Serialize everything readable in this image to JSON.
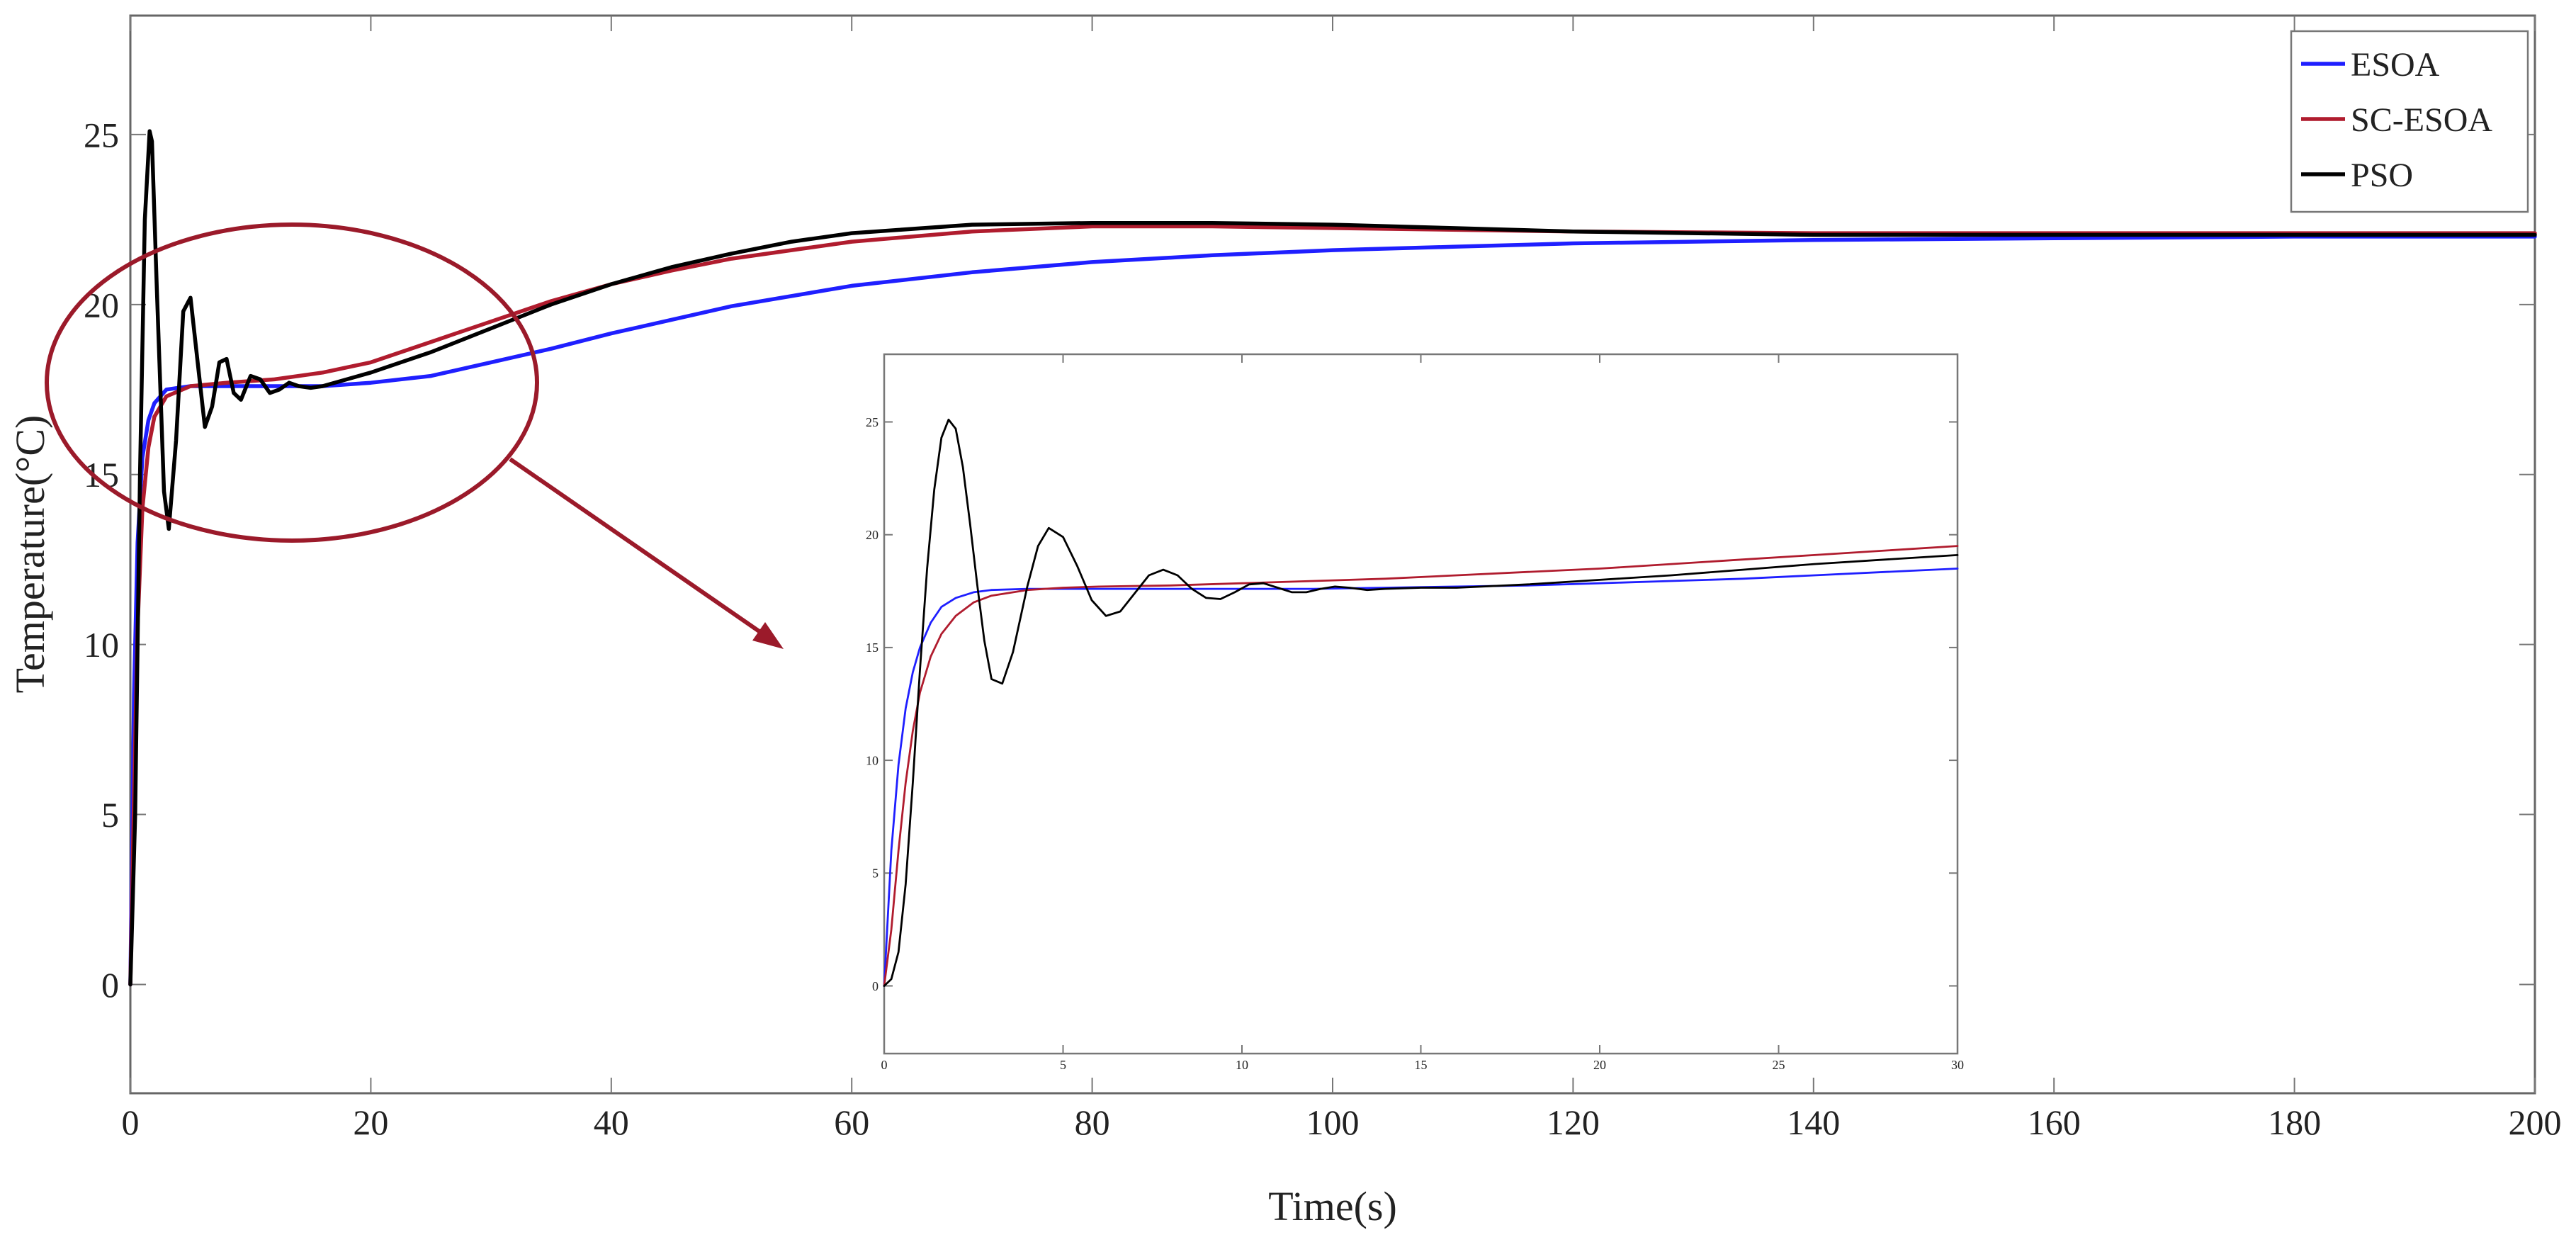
{
  "chart_data": [
    {
      "id": "main",
      "type": "line",
      "title": "",
      "xlabel": "Time(s)",
      "ylabel": "Temperature(°C)",
      "xlim": [
        0,
        200
      ],
      "ylim": [
        -3.2,
        28.5
      ],
      "xticks": [
        0,
        20,
        40,
        60,
        80,
        100,
        120,
        140,
        160,
        180,
        200
      ],
      "yticks": [
        0,
        5,
        10,
        15,
        20,
        25
      ],
      "grid": false,
      "legend_position": "top-right",
      "legend": [
        "ESOA",
        "SC-ESOA",
        "PSO"
      ],
      "series": [
        {
          "name": "ESOA",
          "color": "#1f1fff",
          "x": [
            0,
            0.3,
            0.6,
            1.0,
            1.5,
            2.0,
            3.0,
            5.0,
            8.0,
            12.0,
            16.0,
            20.0,
            25.0,
            30.0,
            35.0,
            40.0,
            50.0,
            60.0,
            70.0,
            80.0,
            90.0,
            100.0,
            110.0,
            120.0,
            140.0,
            160.0,
            180.0,
            200.0
          ],
          "y": [
            0,
            8.5,
            13.0,
            15.5,
            16.6,
            17.1,
            17.5,
            17.6,
            17.6,
            17.6,
            17.6,
            17.7,
            17.9,
            18.3,
            18.7,
            19.15,
            19.95,
            20.55,
            20.95,
            21.25,
            21.45,
            21.6,
            21.7,
            21.8,
            21.9,
            21.95,
            22.0,
            22.0
          ]
        },
        {
          "name": "SC-ESOA",
          "color": "#b01c2e",
          "x": [
            0,
            0.3,
            0.6,
            1.0,
            1.5,
            2.0,
            3.0,
            5.0,
            8.0,
            12.0,
            16.0,
            20.0,
            25.0,
            30.0,
            35.0,
            40.0,
            45.0,
            50.0,
            60.0,
            70.0,
            80.0,
            90.0,
            100.0,
            120.0,
            140.0,
            160.0,
            180.0,
            200.0
          ],
          "y": [
            0,
            5.5,
            10.5,
            14.0,
            15.8,
            16.7,
            17.3,
            17.6,
            17.7,
            17.8,
            18.0,
            18.3,
            18.9,
            19.5,
            20.1,
            20.6,
            21.0,
            21.35,
            21.85,
            22.15,
            22.3,
            22.3,
            22.25,
            22.15,
            22.1,
            22.1,
            22.1,
            22.1
          ]
        },
        {
          "name": "PSO",
          "color": "#000000",
          "x": [
            0,
            0.4,
            0.8,
            1.2,
            1.6,
            1.8,
            2.2,
            2.8,
            3.2,
            3.8,
            4.4,
            5.0,
            5.6,
            6.2,
            6.8,
            7.4,
            8.0,
            8.6,
            9.2,
            10.0,
            10.8,
            11.6,
            12.4,
            13.2,
            14.0,
            15.0,
            16.0,
            18.0,
            20.0,
            25.0,
            30.0,
            35.0,
            40.0,
            45.0,
            50.0,
            55.0,
            60.0,
            70.0,
            80.0,
            90.0,
            100.0,
            110.0,
            120.0,
            140.0,
            160.0,
            180.0,
            200.0
          ],
          "y": [
            0,
            5,
            15,
            22.5,
            25.1,
            24.8,
            20.5,
            14.5,
            13.4,
            16.0,
            19.8,
            20.2,
            18.3,
            16.4,
            17.0,
            18.3,
            18.4,
            17.4,
            17.2,
            17.9,
            17.8,
            17.4,
            17.5,
            17.7,
            17.6,
            17.55,
            17.6,
            17.8,
            18.0,
            18.6,
            19.3,
            20.0,
            20.6,
            21.1,
            21.5,
            21.85,
            22.1,
            22.35,
            22.4,
            22.4,
            22.35,
            22.25,
            22.15,
            22.05,
            22.05,
            22.05,
            22.05
          ]
        }
      ],
      "annotations": [
        {
          "type": "ellipse",
          "description": "highlight of initial transient region",
          "color": "#9b1a2a"
        },
        {
          "type": "arrow",
          "description": "points to zoomed inset",
          "color": "#9b1a2a"
        }
      ]
    },
    {
      "id": "inset",
      "type": "line",
      "title": "",
      "xlabel": "",
      "ylabel": "",
      "xlim": [
        0,
        30
      ],
      "ylim": [
        -3,
        28
      ],
      "xticks": [
        0,
        5,
        10,
        15,
        20,
        25,
        30
      ],
      "yticks": [
        0,
        5,
        10,
        15,
        20,
        25
      ],
      "grid": false,
      "series": [
        {
          "name": "ESOA",
          "color": "#1f1fff",
          "x": [
            0,
            0.2,
            0.4,
            0.6,
            0.8,
            1.0,
            1.3,
            1.6,
            2.0,
            2.5,
            3.0,
            4.0,
            5.0,
            6.0,
            8.0,
            10.0,
            12.0,
            14.0,
            16.0,
            18.0,
            20.0,
            22.0,
            24.0,
            26.0,
            28.0,
            30.0
          ],
          "y": [
            0,
            6.0,
            9.8,
            12.3,
            13.9,
            15.0,
            16.1,
            16.8,
            17.2,
            17.45,
            17.55,
            17.6,
            17.6,
            17.6,
            17.6,
            17.6,
            17.6,
            17.65,
            17.7,
            17.75,
            17.85,
            17.95,
            18.05,
            18.2,
            18.35,
            18.5
          ]
        },
        {
          "name": "SC-ESOA",
          "color": "#b01c2e",
          "x": [
            0,
            0.2,
            0.4,
            0.6,
            0.8,
            1.0,
            1.3,
            1.6,
            2.0,
            2.5,
            3.0,
            4.0,
            5.0,
            6.0,
            8.0,
            10.0,
            12.0,
            14.0,
            16.0,
            18.0,
            20.0,
            22.0,
            24.0,
            26.0,
            28.0,
            30.0
          ],
          "y": [
            0,
            2.5,
            6.0,
            9.0,
            11.3,
            13.0,
            14.6,
            15.6,
            16.4,
            17.0,
            17.3,
            17.55,
            17.65,
            17.7,
            17.75,
            17.85,
            17.95,
            18.05,
            18.2,
            18.35,
            18.5,
            18.7,
            18.9,
            19.1,
            19.3,
            19.5
          ]
        },
        {
          "name": "PSO",
          "color": "#000000",
          "x": [
            0,
            0.2,
            0.4,
            0.6,
            0.8,
            1.0,
            1.2,
            1.4,
            1.6,
            1.8,
            2.0,
            2.2,
            2.4,
            2.6,
            2.8,
            3.0,
            3.3,
            3.6,
            4.0,
            4.3,
            4.6,
            5.0,
            5.4,
            5.8,
            6.2,
            6.6,
            7.0,
            7.4,
            7.8,
            8.2,
            8.6,
            9.0,
            9.4,
            9.8,
            10.2,
            10.6,
            11.0,
            11.4,
            11.8,
            12.2,
            12.6,
            13.0,
            13.5,
            14.0,
            15.0,
            16.0,
            18.0,
            20.0,
            22.0,
            24.0,
            26.0,
            28.0,
            30.0
          ],
          "y": [
            0,
            0.3,
            1.5,
            4.5,
            9.0,
            14.0,
            18.5,
            22.0,
            24.3,
            25.1,
            24.7,
            23.0,
            20.5,
            17.8,
            15.3,
            13.6,
            13.4,
            14.8,
            17.7,
            19.5,
            20.3,
            19.9,
            18.6,
            17.1,
            16.4,
            16.6,
            17.4,
            18.2,
            18.45,
            18.2,
            17.6,
            17.2,
            17.15,
            17.45,
            17.8,
            17.85,
            17.65,
            17.45,
            17.45,
            17.6,
            17.7,
            17.65,
            17.55,
            17.6,
            17.65,
            17.65,
            17.8,
            18.0,
            18.2,
            18.45,
            18.7,
            18.9,
            19.1
          ]
        }
      ]
    }
  ]
}
